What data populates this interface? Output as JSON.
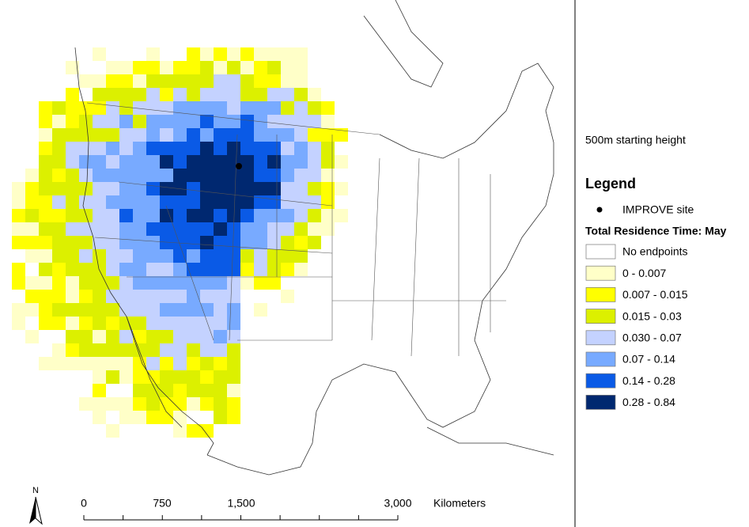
{
  "subtitle": "500m starting height",
  "legend": {
    "title": "Legend",
    "site_label": "IMPROVE site",
    "heading": "Total Residence Time: May",
    "classes": [
      {
        "label": "No endpoints",
        "color": "#ffffff"
      },
      {
        "label": "0 - 0.007",
        "color": "#ffffc8"
      },
      {
        "label": "0.007 - 0.015",
        "color": "#ffff00"
      },
      {
        "label": "0.015 - 0.03",
        "color": "#dcf000"
      },
      {
        "label": "0.030 - 0.07",
        "color": "#c4d2ff"
      },
      {
        "label": "0.07 - 0.14",
        "color": "#78aaff"
      },
      {
        "label": "0.14 - 0.28",
        "color": "#0a5ae6"
      },
      {
        "label": "0.28 - 0.84",
        "color": "#002870"
      }
    ]
  },
  "scale_bar": {
    "labels": [
      "0",
      "750",
      "1,500",
      "3,000"
    ],
    "unit": "Kilometers"
  },
  "north_arrow": "N"
}
